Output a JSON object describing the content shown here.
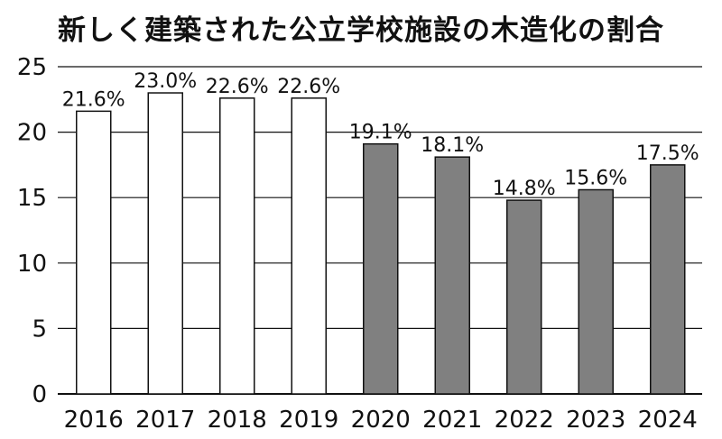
{
  "chart_data": {
    "type": "bar",
    "title": "新しく建築された公立学校施設の木造化の割合",
    "xlabel": "",
    "ylabel": "",
    "categories": [
      "2016",
      "2017",
      "2018",
      "2019",
      "2020",
      "2021",
      "2022",
      "2023",
      "2024"
    ],
    "values": [
      21.6,
      23.0,
      22.6,
      22.6,
      19.1,
      18.1,
      14.8,
      15.6,
      17.5
    ],
    "data_labels": [
      "21.6%",
      "23.0%",
      "22.6%",
      "22.6%",
      "19.1%",
      "18.1%",
      "14.8%",
      "15.6%",
      "17.5%"
    ],
    "ylim": [
      0,
      25
    ],
    "yticks": [
      0,
      5,
      10,
      15,
      20,
      25
    ],
    "grid": true,
    "legend": "none",
    "bar_fills": [
      "#ffffff",
      "#ffffff",
      "#ffffff",
      "#ffffff",
      "#808080",
      "#808080",
      "#808080",
      "#808080",
      "#808080"
    ],
    "bar_stroke": "#111111"
  }
}
